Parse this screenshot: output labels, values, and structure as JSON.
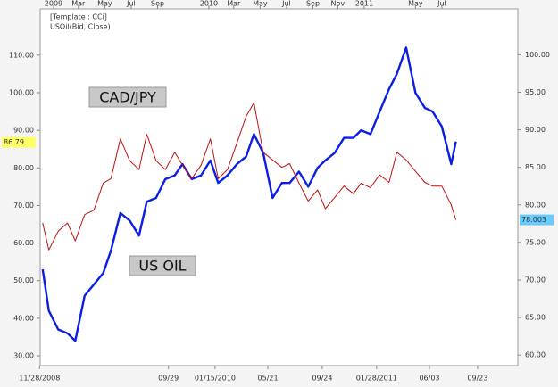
{
  "chart_data": {
    "type": "line",
    "template_label": "[Template : CCi]",
    "instrument_label": "USOil(Bid, Close)",
    "x": [
      2008.93,
      2008.97,
      2009.03,
      2009.09,
      2009.14,
      2009.2,
      2009.26,
      2009.32,
      2009.37,
      2009.43,
      2009.49,
      2009.55,
      2009.6,
      2009.66,
      2009.72,
      2009.78,
      2009.83,
      2009.89,
      2009.95,
      2010.01,
      2010.06,
      2010.12,
      2010.18,
      2010.24,
      2010.29,
      2010.35,
      2010.41,
      2010.47,
      2010.52,
      2010.58,
      2010.64,
      2010.7,
      2010.75,
      2010.81,
      2010.87,
      2010.93,
      2010.98,
      2011.04,
      2011.1,
      2011.16,
      2011.21,
      2011.27,
      2011.33,
      2011.39,
      2011.44,
      2011.5,
      2011.56,
      2011.59
    ],
    "series": [
      {
        "name": "US OIL",
        "color": "#0a1ee6",
        "width": 2.4,
        "axis": "y",
        "last": 86.79,
        "last_color": "#ffff66",
        "values": [
          53,
          42,
          37,
          36,
          34,
          46,
          49,
          52,
          58,
          68,
          66,
          62,
          71,
          72,
          77,
          78,
          81,
          77,
          78,
          82,
          76,
          78,
          81,
          83,
          89,
          84,
          72,
          76,
          76,
          79,
          75,
          80,
          82,
          84,
          88,
          88,
          90,
          89,
          95,
          101,
          105,
          112,
          100,
          96,
          95,
          91,
          81,
          87
        ]
      },
      {
        "name": "CAD/JPY",
        "color": "#c01010",
        "width": 1,
        "axis": "y2",
        "last": 78.003,
        "last_color": "#66ccff",
        "values": [
          77.6,
          74,
          76.5,
          77.6,
          75.2,
          78.7,
          79.3,
          82.9,
          83.5,
          88.8,
          85.9,
          84.7,
          89.4,
          85.9,
          84.7,
          87,
          85.3,
          83.5,
          85.3,
          88.8,
          83.5,
          84.7,
          88.2,
          91.8,
          93.6,
          87,
          86,
          85,
          85.5,
          82.9,
          80.5,
          82,
          79.5,
          81,
          82.5,
          81.5,
          82.9,
          82.3,
          84,
          83,
          87,
          86,
          84.5,
          83,
          82.5,
          82.5,
          80,
          78
        ]
      }
    ],
    "xlim": [
      2008.914,
      2011.989
    ],
    "xticks": [
      {
        "value": 2008.91,
        "label": "11/28/2008"
      },
      {
        "value": 2009.74,
        "label": "09/29"
      },
      {
        "value": 2010.04,
        "label": "01/15/2010"
      },
      {
        "value": 2010.38,
        "label": "05/21"
      },
      {
        "value": 2010.73,
        "label": "09/24"
      },
      {
        "value": 2011.08,
        "label": "01/28/2011"
      },
      {
        "value": 2011.42,
        "label": "06/03"
      },
      {
        "value": 2011.73,
        "label": "09/23"
      }
    ],
    "top_xticks": [
      2009,
      {
        "value": 2009.16,
        "label": "Mar"
      },
      {
        "value": 2009.33,
        "label": "May"
      },
      {
        "value": 2009.5,
        "label": "Jul"
      },
      {
        "value": 2009.67,
        "label": "Sep"
      },
      2010,
      {
        "value": 2010.16,
        "label": "Mar"
      },
      {
        "value": 2010.33,
        "label": "May"
      },
      {
        "value": 2010.5,
        "label": "Jul"
      },
      {
        "value": 2010.67,
        "label": "Sep"
      },
      {
        "value": 2010.83,
        "label": "Nov"
      },
      2011,
      {
        "value": 2011.33,
        "label": "May"
      },
      {
        "value": 2011.5,
        "label": "Jul"
      }
    ],
    "ylim": [
      27.4,
      122.3
    ],
    "yticks": [
      {
        "value": 30,
        "label": "30.00"
      },
      {
        "value": 40,
        "label": "40.00"
      },
      {
        "value": 50,
        "label": "50.00"
      },
      {
        "value": 60,
        "label": "60.00"
      },
      {
        "value": 70,
        "label": "70.00"
      },
      {
        "value": 80,
        "label": "80.00"
      },
      {
        "value": 90,
        "label": "90.00"
      },
      {
        "value": 100,
        "label": "100.00"
      },
      {
        "value": 110,
        "label": "110.00"
      }
    ],
    "y2lim": [
      58.6,
      106.1
    ],
    "y2ticks": [
      {
        "value": 60,
        "label": "60.00"
      },
      {
        "value": 65,
        "label": "65.00"
      },
      {
        "value": 70,
        "label": "70.00"
      },
      {
        "value": 75,
        "label": "75.00"
      },
      {
        "value": 80,
        "label": "80.00"
      },
      {
        "value": 85,
        "label": "85.00"
      },
      {
        "value": 90,
        "label": "90.00"
      },
      {
        "value": 95,
        "label": "95.00"
      },
      {
        "value": 100,
        "label": "100.00"
      }
    ]
  }
}
